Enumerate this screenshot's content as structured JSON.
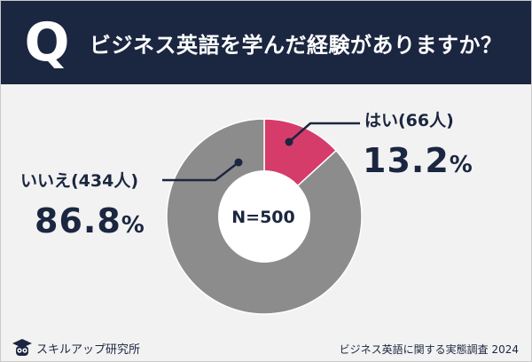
{
  "header": {
    "q_letter": "Q",
    "title": "ビジネス英語を学んだ経験がありますか？"
  },
  "chart_data": {
    "type": "pie",
    "title": "ビジネス英語を学んだ経験がありますか？",
    "donut": true,
    "center_label": "N=500",
    "slices": [
      {
        "label": "はい",
        "count": 66,
        "percent": 13.2,
        "color": "#d63c6a"
      },
      {
        "label": "いいえ",
        "count": 434,
        "percent": 86.8,
        "color": "#8c8c8c"
      }
    ]
  },
  "labels": {
    "yes_label": "はい(66人)",
    "yes_percent_number": "13.2",
    "yes_percent_sign": "%",
    "no_label": "いいえ(434人)",
    "no_percent_number": "86.8",
    "no_percent_sign": "%"
  },
  "footer": {
    "brand": "スキルアップ研究所",
    "brand_icon": "graduation-owl-icon",
    "source": "ビジネス英語に関する実態調査 2024"
  },
  "colors": {
    "header_bg": "#1b2640",
    "accent": "#d63c6a",
    "gray": "#8c8c8c",
    "text": "#1b2640"
  }
}
